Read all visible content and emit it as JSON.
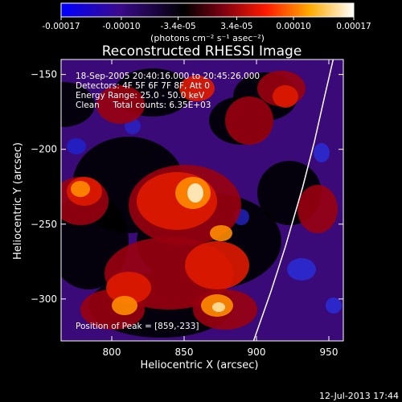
{
  "colorbar": {
    "tick_labels": [
      "-0.00017",
      "-0.00010",
      "-3.4e-05",
      "3.4e-05",
      "0.00010",
      "0.00017"
    ],
    "tick_values": [
      -0.00017,
      -0.0001,
      -3.4e-05,
      3.4e-05,
      0.0001,
      0.00017
    ],
    "range": [
      -0.00017,
      0.00017
    ],
    "units_label": "(photons cm⁻² s⁻¹ asec⁻²)"
  },
  "chart_data": {
    "type": "heatmap",
    "title": "Reconstructed RHESSI Image",
    "xlabel": "Heliocentric X (arcsec)",
    "ylabel": "Heliocentric Y (arcsec)",
    "xlim": [
      765,
      960
    ],
    "ylim": [
      -328,
      -140
    ],
    "x_ticks": [
      800,
      850,
      900,
      950
    ],
    "y_ticks": [
      -150,
      -200,
      -250,
      -300
    ],
    "x_tick_labels": [
      "800",
      "850",
      "900",
      "950"
    ],
    "y_tick_labels": [
      "−150",
      "−200",
      "−250",
      "−300"
    ],
    "annotations": [
      "18-Sep-2005 20:40:16.000 to 20:45:26.000",
      "Detectors: 4F 5F 6F 7F 8F, Att 0",
      "Energy Range: 25.0 - 50.0 keV",
      "Clean     Total counts: 6.35E+03"
    ],
    "peak_label": "Position of Peak = [859,-233]",
    "peak_position": [
      859,
      -233
    ],
    "colormap": [
      "#0000ff",
      "#4b0082",
      "#000000",
      "#800000",
      "#ff0000",
      "#ff8c00",
      "#ffffff"
    ],
    "limb_curve": [
      [
        898,
        -328
      ],
      [
        910,
        -295
      ],
      [
        920,
        -265
      ],
      [
        932,
        -225
      ],
      [
        940,
        -195
      ],
      [
        947,
        -165
      ],
      [
        953,
        -140
      ]
    ]
  },
  "footer": {
    "timestamp": "12-Jul-2013 17:44"
  }
}
